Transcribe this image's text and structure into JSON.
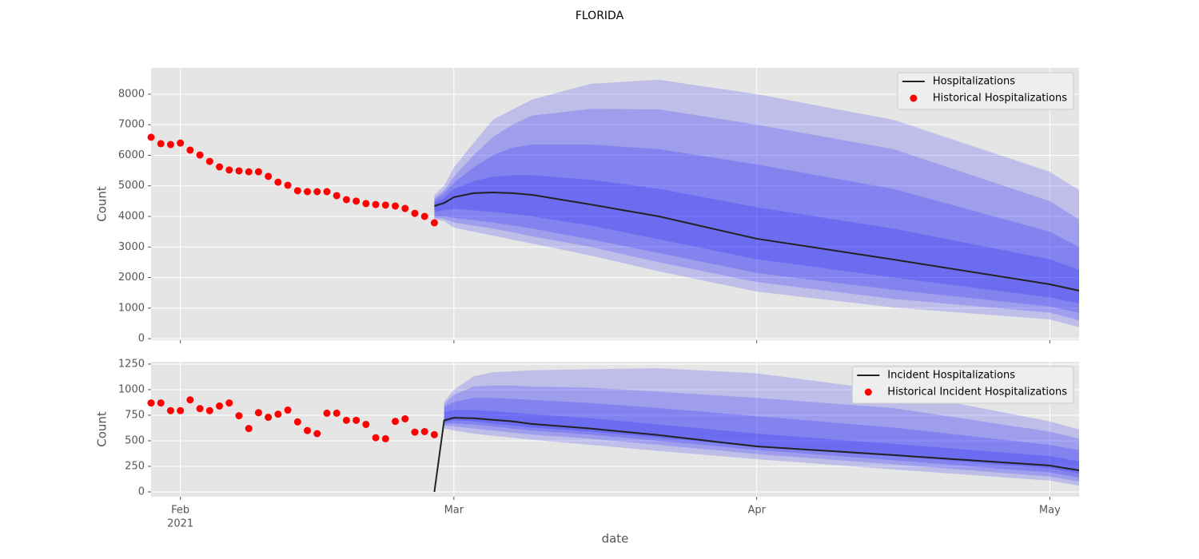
{
  "title": "FLORIDA",
  "chart_data": [
    {
      "type": "line",
      "ylabel": "Count",
      "xlim": [
        "2021-01-29",
        "2021-05-04"
      ],
      "ylim": [
        -50,
        8860
      ],
      "xticks": [
        "2021-02-01",
        "2021-03-01",
        "2021-04-01",
        "2021-05-01"
      ],
      "yticks": [
        0,
        1000,
        2000,
        3000,
        4000,
        5000,
        6000,
        7000,
        8000
      ],
      "grid": true,
      "legend": "upper right",
      "series": [
        {
          "type": "band",
          "color": "#0000ff",
          "alpha": 0.17,
          "x": [
            "2021-02-27",
            "2021-02-28",
            "2021-03-01",
            "2021-03-03",
            "2021-03-05",
            "2021-03-07",
            "2021-03-09",
            "2021-03-15",
            "2021-03-22",
            "2021-04-01",
            "2021-04-15",
            "2021-05-01",
            "2021-05-04"
          ],
          "upper": [
            4700,
            5000,
            5600,
            6400,
            7160,
            7500,
            7820,
            8340,
            8470,
            8000,
            7160,
            5460,
            4860
          ],
          "lower": [
            3900,
            3850,
            3630,
            3500,
            3370,
            3240,
            3110,
            2720,
            2200,
            1540,
            1020,
            630,
            370
          ]
        },
        {
          "type": "band",
          "color": "#0000ff",
          "alpha": 0.17,
          "x": [
            "2021-02-27",
            "2021-02-28",
            "2021-03-01",
            "2021-03-03",
            "2021-03-05",
            "2021-03-07",
            "2021-03-09",
            "2021-03-15",
            "2021-03-22",
            "2021-04-01",
            "2021-04-15",
            "2021-05-01",
            "2021-05-04"
          ],
          "upper": [
            4600,
            4850,
            5300,
            6000,
            6600,
            7000,
            7300,
            7520,
            7500,
            7000,
            6200,
            4500,
            3900
          ],
          "lower": [
            3950,
            3920,
            3800,
            3700,
            3600,
            3480,
            3350,
            3000,
            2500,
            1850,
            1300,
            850,
            600
          ]
        },
        {
          "type": "band",
          "color": "#0000ff",
          "alpha": 0.17,
          "x": [
            "2021-02-27",
            "2021-02-28",
            "2021-03-01",
            "2021-03-03",
            "2021-03-05",
            "2021-03-07",
            "2021-03-09",
            "2021-03-15",
            "2021-03-22",
            "2021-04-01",
            "2021-04-15",
            "2021-05-01",
            "2021-05-04"
          ],
          "upper": [
            4550,
            4750,
            5100,
            5600,
            6000,
            6250,
            6350,
            6350,
            6200,
            5700,
            4900,
            3500,
            3000
          ],
          "lower": [
            4000,
            4000,
            3950,
            3880,
            3800,
            3700,
            3600,
            3250,
            2800,
            2150,
            1600,
            1050,
            850
          ]
        },
        {
          "type": "band",
          "color": "#0000ff",
          "alpha": 0.17,
          "x": [
            "2021-02-27",
            "2021-02-28",
            "2021-03-01",
            "2021-03-03",
            "2021-03-05",
            "2021-03-07",
            "2021-03-09",
            "2021-03-15",
            "2021-03-22",
            "2021-04-01",
            "2021-04-15",
            "2021-05-01",
            "2021-05-04"
          ],
          "upper": [
            4450,
            4600,
            4900,
            5150,
            5300,
            5350,
            5350,
            5200,
            4900,
            4300,
            3600,
            2600,
            2250
          ],
          "lower": [
            4150,
            4200,
            4250,
            4200,
            4150,
            4080,
            4000,
            3700,
            3250,
            2600,
            2000,
            1350,
            1150
          ]
        },
        {
          "type": "line",
          "name": "Hospitalizations",
          "color": "#222222",
          "x": [
            "2021-02-27",
            "2021-02-28",
            "2021-03-01",
            "2021-03-03",
            "2021-03-05",
            "2021-03-07",
            "2021-03-09",
            "2021-03-15",
            "2021-03-22",
            "2021-04-01",
            "2021-04-15",
            "2021-05-01",
            "2021-05-04"
          ],
          "values": [
            4340,
            4440,
            4630,
            4760,
            4785,
            4760,
            4705,
            4390,
            4000,
            3270,
            2590,
            1780,
            1570
          ]
        },
        {
          "type": "scatter",
          "name": "Historical Hospitalizations",
          "color": "#ff0000",
          "x": [
            "2021-01-29",
            "2021-01-30",
            "2021-01-31",
            "2021-02-01",
            "2021-02-02",
            "2021-02-03",
            "2021-02-04",
            "2021-02-05",
            "2021-02-06",
            "2021-02-07",
            "2021-02-08",
            "2021-02-09",
            "2021-02-10",
            "2021-02-11",
            "2021-02-12",
            "2021-02-13",
            "2021-02-14",
            "2021-02-15",
            "2021-02-16",
            "2021-02-17",
            "2021-02-18",
            "2021-02-19",
            "2021-02-20",
            "2021-02-21",
            "2021-02-22",
            "2021-02-23",
            "2021-02-24",
            "2021-02-25",
            "2021-02-26",
            "2021-02-27"
          ],
          "values": [
            6590,
            6380,
            6350,
            6400,
            6170,
            6010,
            5800,
            5620,
            5520,
            5490,
            5460,
            5460,
            5310,
            5120,
            5020,
            4840,
            4810,
            4810,
            4810,
            4680,
            4550,
            4500,
            4420,
            4390,
            4370,
            4340,
            4260,
            4100,
            4000,
            3790
          ]
        }
      ]
    },
    {
      "type": "line",
      "ylabel": "Count",
      "xlabel": "date",
      "xlabel_year": "2021",
      "xlim": [
        "2021-01-29",
        "2021-05-04"
      ],
      "ylim": [
        -47,
        1273
      ],
      "xticks": [
        {
          "value": "2021-02-01",
          "label": "Feb"
        },
        {
          "value": "2021-03-01",
          "label": "Mar"
        },
        {
          "value": "2021-04-01",
          "label": "Apr"
        },
        {
          "value": "2021-05-01",
          "label": "May"
        }
      ],
      "yticks": [
        0,
        250,
        500,
        750,
        1000,
        1250
      ],
      "grid": true,
      "legend": "upper right",
      "series": [
        {
          "type": "band",
          "color": "#0000ff",
          "alpha": 0.17,
          "x": [
            "2021-02-28",
            "2021-03-01",
            "2021-03-03",
            "2021-03-05",
            "2021-03-07",
            "2021-03-09",
            "2021-03-15",
            "2021-03-22",
            "2021-04-01",
            "2021-04-15",
            "2021-05-01",
            "2021-05-04"
          ],
          "upper": [
            880,
            1000,
            1130,
            1170,
            1180,
            1190,
            1200,
            1210,
            1160,
            985,
            690,
            610
          ],
          "lower": [
            620,
            600,
            570,
            550,
            530,
            510,
            460,
            400,
            320,
            220,
            110,
            60
          ]
        },
        {
          "type": "band",
          "color": "#0000ff",
          "alpha": 0.17,
          "x": [
            "2021-02-28",
            "2021-03-01",
            "2021-03-03",
            "2021-03-05",
            "2021-03-07",
            "2021-03-09",
            "2021-03-15",
            "2021-03-22",
            "2021-04-01",
            "2021-04-15",
            "2021-05-01",
            "2021-05-04"
          ],
          "upper": [
            860,
            950,
            1030,
            1040,
            1040,
            1030,
            1020,
            980,
            920,
            820,
            590,
            520
          ],
          "lower": [
            650,
            640,
            620,
            600,
            580,
            560,
            520,
            460,
            370,
            270,
            150,
            100
          ]
        },
        {
          "type": "band",
          "color": "#0000ff",
          "alpha": 0.17,
          "x": [
            "2021-02-28",
            "2021-03-01",
            "2021-03-03",
            "2021-03-05",
            "2021-03-07",
            "2021-03-09",
            "2021-03-15",
            "2021-03-22",
            "2021-04-01",
            "2021-04-15",
            "2021-05-01",
            "2021-05-04"
          ],
          "upper": [
            830,
            880,
            920,
            920,
            910,
            900,
            870,
            820,
            740,
            630,
            460,
            410
          ],
          "lower": [
            670,
            670,
            660,
            640,
            620,
            600,
            560,
            500,
            410,
            310,
            190,
            140
          ]
        },
        {
          "type": "band",
          "color": "#0000ff",
          "alpha": 0.17,
          "x": [
            "2021-02-28",
            "2021-03-01",
            "2021-03-03",
            "2021-03-05",
            "2021-03-07",
            "2021-03-09",
            "2021-03-15",
            "2021-03-22",
            "2021-04-01",
            "2021-04-15",
            "2021-05-01",
            "2021-05-04"
          ],
          "upper": [
            780,
            800,
            800,
            790,
            775,
            760,
            720,
            660,
            570,
            470,
            350,
            300
          ],
          "lower": [
            680,
            700,
            690,
            670,
            650,
            630,
            590,
            530,
            440,
            350,
            230,
            180
          ]
        },
        {
          "type": "line",
          "name": "Incident Hospitalizations",
          "color": "#222222",
          "x": [
            "2021-02-27",
            "2021-02-28",
            "2021-03-01",
            "2021-03-03",
            "2021-03-05",
            "2021-03-07",
            "2021-03-09",
            "2021-03-15",
            "2021-03-22",
            "2021-04-01",
            "2021-04-15",
            "2021-05-01",
            "2021-05-04"
          ],
          "values": [
            0,
            700,
            725,
            720,
            705,
            690,
            665,
            620,
            555,
            445,
            360,
            258,
            211
          ]
        },
        {
          "type": "scatter",
          "name": "Historical Incident Hospitalizations",
          "color": "#ff0000",
          "x": [
            "2021-01-29",
            "2021-01-30",
            "2021-01-31",
            "2021-02-01",
            "2021-02-02",
            "2021-02-03",
            "2021-02-04",
            "2021-02-05",
            "2021-02-06",
            "2021-02-07",
            "2021-02-08",
            "2021-02-09",
            "2021-02-10",
            "2021-02-11",
            "2021-02-12",
            "2021-02-13",
            "2021-02-14",
            "2021-02-15",
            "2021-02-16",
            "2021-02-17",
            "2021-02-18",
            "2021-02-19",
            "2021-02-20",
            "2021-02-21",
            "2021-02-22",
            "2021-02-23",
            "2021-02-24",
            "2021-02-25",
            "2021-02-26",
            "2021-02-27"
          ],
          "values": [
            870,
            870,
            795,
            795,
            900,
            815,
            795,
            840,
            870,
            745,
            620,
            775,
            730,
            760,
            800,
            685,
            600,
            570,
            770,
            770,
            700,
            700,
            660,
            530,
            520,
            690,
            715,
            585,
            590,
            560
          ]
        }
      ]
    }
  ]
}
